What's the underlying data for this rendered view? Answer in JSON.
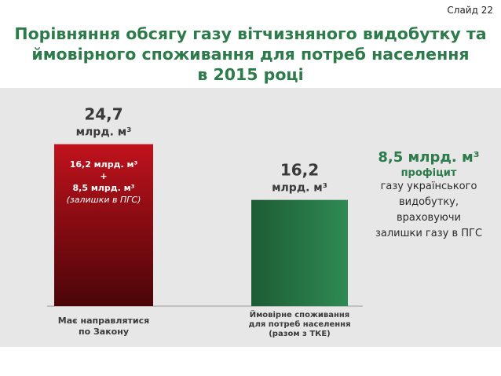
{
  "slide": {
    "label": "Слайд 22"
  },
  "title_lines": [
    "Порівняння обсягу газу вітчизняного видобутку та",
    "ймовірного споживання для потреб населення",
    "в 2015 році"
  ],
  "chart_data": {
    "type": "bar",
    "title": "Порівняння обсягу газу вітчизняного видобутку та ймовірного споживання для потреб населення в 2015 році",
    "categories": [
      "Має направлятися по Закону",
      "Ймовірне споживання для потреб населення (разом з ТКЕ)"
    ],
    "category_label_lines": [
      [
        "Має направлятися",
        "по Закону"
      ],
      [
        "Ймовірне споживання",
        "для потреб населення",
        "(разом з ТКЕ)"
      ]
    ],
    "values": [
      24.7,
      16.2
    ],
    "value_labels": [
      "24,7",
      "16,2"
    ],
    "unit_label": "млрд. м³",
    "ylim": [
      0,
      25.5
    ],
    "grid": false,
    "legend": "none",
    "colors": {
      "bar1_top": "#c0121c",
      "bar1_bottom": "#4a0508",
      "bar2_top": "#1d5c35",
      "bar2_bottom": "#2f8a52"
    },
    "inner_label_lines": [
      "16,2 млрд. м³",
      "+",
      "8,5 млрд. м³",
      "(залишки в ПГС)"
    ]
  },
  "annotation": {
    "value": "8,5 млрд. м³",
    "subtitle": "профіцит",
    "lines": [
      "газу українського",
      "видобутку,",
      "враховуючи",
      "залишки газу в ПГС"
    ]
  },
  "colors": {
    "title_green": "#2d7a4a",
    "plot_bg": "#e7e7e7"
  }
}
